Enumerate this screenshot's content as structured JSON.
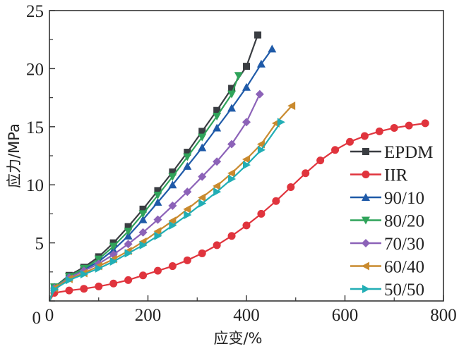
{
  "chart_data": {
    "type": "line",
    "title": "",
    "xlabel": "应变/%",
    "ylabel": "应力/MPa",
    "xlim": [
      0,
      800
    ],
    "ylim": [
      0,
      25
    ],
    "x_ticks": [
      0,
      200,
      400,
      600,
      800
    ],
    "x_tick_labels": [
      "0",
      "200",
      "400",
      "600",
      "800"
    ],
    "x_minor_ticks": [
      100,
      300,
      500,
      700
    ],
    "y_ticks": [
      0,
      5,
      10,
      15,
      20,
      25
    ],
    "y_tick_labels": [
      "0",
      "5",
      "10",
      "15",
      "20",
      "25"
    ],
    "y_minor_ticks": [
      2.5,
      7.5,
      12.5,
      17.5,
      22.5
    ],
    "grid": false,
    "legend_position": "bottom-right",
    "series": [
      {
        "name": "EPDM",
        "color": "#3a3d42",
        "marker": "square",
        "x": [
          0,
          10,
          40,
          70,
          100,
          130,
          160,
          190,
          220,
          250,
          280,
          310,
          340,
          370,
          400,
          423
        ],
        "y": [
          0,
          1.2,
          2.2,
          2.9,
          3.8,
          5.0,
          6.4,
          7.9,
          9.5,
          11.1,
          12.8,
          14.6,
          16.4,
          18.3,
          20.2,
          22.9
        ]
      },
      {
        "name": "IIR",
        "color": "#e0343d",
        "marker": "circle",
        "x": [
          0,
          10,
          40,
          70,
          100,
          130,
          160,
          190,
          220,
          250,
          280,
          310,
          340,
          370,
          400,
          430,
          460,
          490,
          520,
          550,
          580,
          610,
          640,
          670,
          700,
          730,
          763
        ],
        "y": [
          0,
          0.7,
          0.9,
          1.05,
          1.25,
          1.5,
          1.8,
          2.2,
          2.6,
          3.0,
          3.5,
          4.1,
          4.8,
          5.6,
          6.5,
          7.5,
          8.6,
          9.8,
          11.0,
          12.1,
          13.0,
          13.7,
          14.2,
          14.6,
          14.9,
          15.1,
          15.3
        ]
      },
      {
        "name": "90/10",
        "color": "#1f5aa8",
        "marker": "triangle-up",
        "x": [
          0,
          10,
          40,
          70,
          100,
          130,
          160,
          190,
          220,
          250,
          280,
          310,
          340,
          370,
          400,
          430,
          452
        ],
        "y": [
          0,
          1.2,
          2.1,
          2.7,
          3.4,
          4.4,
          5.6,
          7.0,
          8.5,
          10.0,
          11.6,
          13.2,
          14.9,
          16.6,
          18.4,
          20.4,
          21.7
        ]
      },
      {
        "name": "80/20",
        "color": "#2fa35a",
        "marker": "triangle-down",
        "x": [
          0,
          10,
          40,
          70,
          100,
          130,
          160,
          190,
          220,
          250,
          280,
          310,
          340,
          370,
          384
        ],
        "y": [
          0,
          1.2,
          2.1,
          2.8,
          3.6,
          4.7,
          6.0,
          7.5,
          9.1,
          10.7,
          12.4,
          14.1,
          15.9,
          17.8,
          19.4
        ]
      },
      {
        "name": "70/30",
        "color": "#8c62b8",
        "marker": "diamond",
        "x": [
          0,
          10,
          40,
          70,
          100,
          130,
          160,
          190,
          220,
          250,
          280,
          310,
          340,
          370,
          400,
          427
        ],
        "y": [
          0,
          1.1,
          2.0,
          2.6,
          3.2,
          4.0,
          4.9,
          5.9,
          7.0,
          8.2,
          9.4,
          10.7,
          12.0,
          13.5,
          15.4,
          17.8
        ]
      },
      {
        "name": "60/40",
        "color": "#c98a2e",
        "marker": "triangle-left",
        "x": [
          0,
          10,
          40,
          70,
          100,
          130,
          160,
          190,
          220,
          250,
          280,
          310,
          340,
          370,
          400,
          430,
          460,
          492
        ],
        "y": [
          0,
          1.1,
          1.9,
          2.4,
          3.0,
          3.6,
          4.3,
          5.1,
          6.0,
          6.9,
          7.9,
          8.9,
          9.9,
          11.0,
          12.2,
          13.5,
          15.3,
          16.8
        ]
      },
      {
        "name": "50/50",
        "color": "#22aeb5",
        "marker": "triangle-right",
        "x": [
          0,
          10,
          40,
          70,
          100,
          130,
          160,
          190,
          220,
          250,
          280,
          310,
          340,
          370,
          400,
          430,
          470
        ],
        "y": [
          0,
          1.0,
          1.8,
          2.3,
          2.8,
          3.4,
          4.1,
          4.8,
          5.6,
          6.5,
          7.4,
          8.4,
          9.4,
          10.5,
          11.7,
          13.0,
          15.4
        ]
      }
    ]
  }
}
